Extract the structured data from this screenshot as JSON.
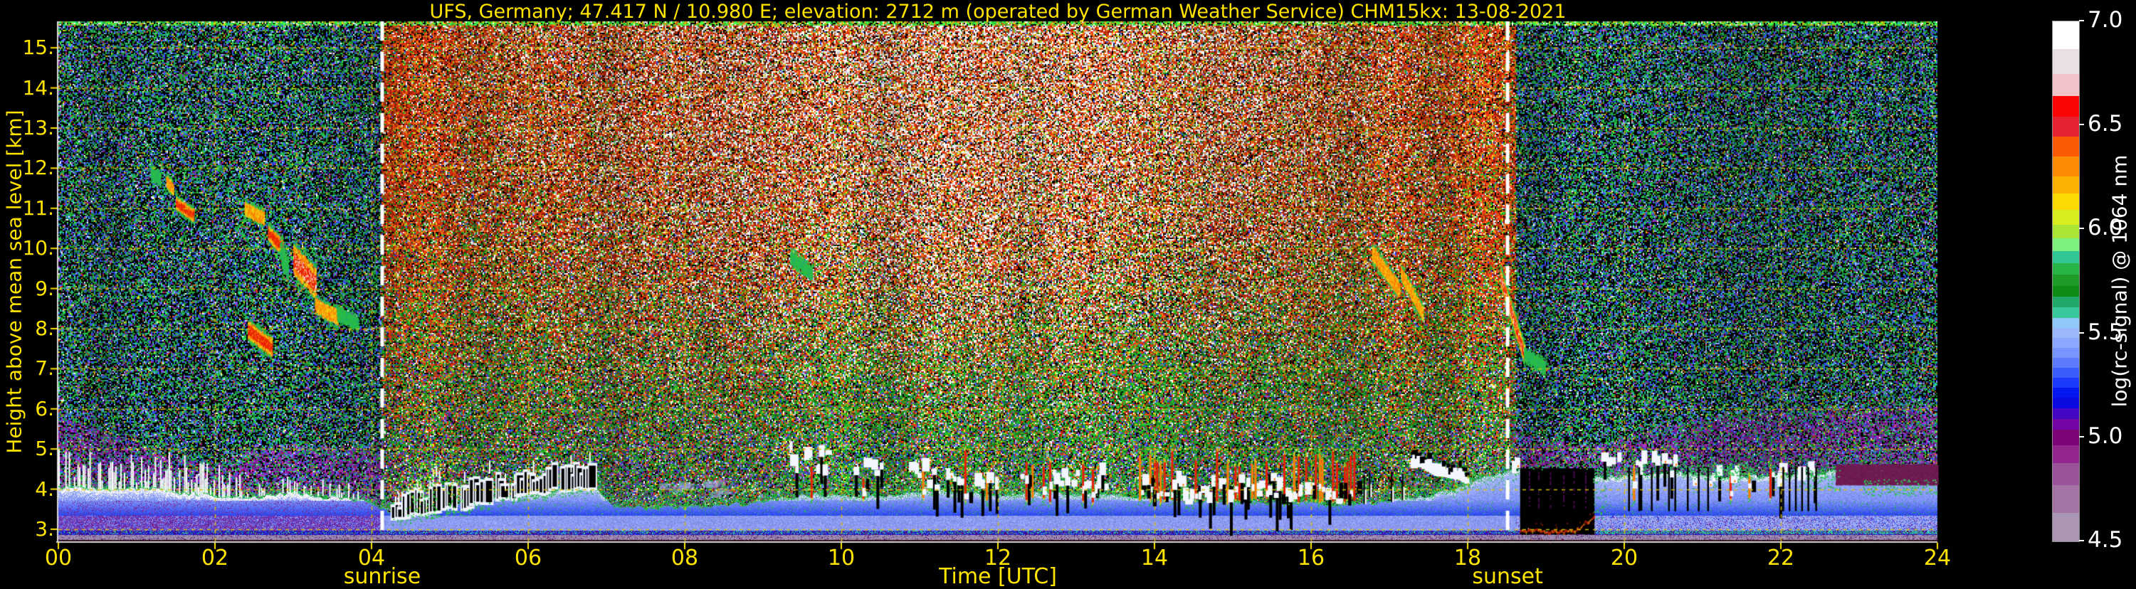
{
  "title": "UFS, Germany; 47.417 N / 10.980 E; elevation: 2712 m  (operated by German Weather Service)   CHM15kx: 13-08-2021",
  "text_color": "#ffe400",
  "grid": {
    "color": "#d9c400",
    "dash": [
      5,
      6
    ]
  },
  "sun_line": {
    "color": "#ffffff",
    "dash": [
      27,
      16
    ],
    "width": 5
  },
  "axes": {
    "x_label": "Time [UTC]",
    "y_label": "Height above mean sea level [km]",
    "x_ticks": [
      {
        "t": 0,
        "label": "00"
      },
      {
        "t": 2,
        "label": "02"
      },
      {
        "t": 4,
        "label": "04"
      },
      {
        "t": 6,
        "label": "06"
      },
      {
        "t": 8,
        "label": "08"
      },
      {
        "t": 10,
        "label": "10"
      },
      {
        "t": 12,
        "label": "12"
      },
      {
        "t": 14,
        "label": "14"
      },
      {
        "t": 16,
        "label": "16"
      },
      {
        "t": 18,
        "label": "18"
      },
      {
        "t": 20,
        "label": "20"
      },
      {
        "t": 22,
        "label": "22"
      },
      {
        "t": 24,
        "label": "24"
      }
    ],
    "y_ticks": [
      {
        "km": 15,
        "label": "15."
      },
      {
        "km": 14,
        "label": "14."
      },
      {
        "km": 13,
        "label": "13."
      },
      {
        "km": 12,
        "label": "12."
      },
      {
        "km": 11,
        "label": "11."
      },
      {
        "km": 10,
        "label": "10."
      },
      {
        "km": 9,
        "label": "9."
      },
      {
        "km": 8,
        "label": "8."
      },
      {
        "km": 7,
        "label": "7."
      },
      {
        "km": 6,
        "label": "6."
      },
      {
        "km": 5,
        "label": "5."
      },
      {
        "km": 4,
        "label": "4."
      },
      {
        "km": 3,
        "label": "3."
      }
    ],
    "sunrise_label": "sunrise",
    "sunset_label": "sunset"
  },
  "colorbar": {
    "label": "log(rc-signal) @ 1064 nm",
    "ticks": [
      {
        "value": 7.0,
        "label": "7.0"
      },
      {
        "value": 6.5,
        "label": "6.5"
      },
      {
        "value": 6.0,
        "label": "6.0"
      },
      {
        "value": 5.5,
        "label": "5.5"
      },
      {
        "value": 5.0,
        "label": "5.0"
      },
      {
        "value": 4.5,
        "label": "4.5"
      }
    ],
    "range": [
      4.5,
      7.0
    ],
    "bands": [
      {
        "color": "#ffffff",
        "h": 39
      },
      {
        "color": "#eadfe2",
        "h": 35
      },
      {
        "color": "#f2c4ca",
        "h": 31
      },
      {
        "color": "#fb0505",
        "h": 29
      },
      {
        "color": "#e62333",
        "h": 28
      },
      {
        "color": "#fb5a04",
        "h": 28
      },
      {
        "color": "#fb8c04",
        "h": 28
      },
      {
        "color": "#fcb004",
        "h": 24
      },
      {
        "color": "#fcd804",
        "h": 23
      },
      {
        "color": "#d8ec20",
        "h": 21
      },
      {
        "color": "#abe434",
        "h": 19
      },
      {
        "color": "#7df07d",
        "h": 18
      },
      {
        "color": "#30c795",
        "h": 17
      },
      {
        "color": "#28b446",
        "h": 16
      },
      {
        "color": "#1e9c28",
        "h": 16
      },
      {
        "color": "#0f8c14",
        "h": 15
      },
      {
        "color": "#22a868",
        "h": 15
      },
      {
        "color": "#38c89c",
        "h": 15
      },
      {
        "color": "#90c8fa",
        "h": 14
      },
      {
        "color": "#9cb8fc",
        "h": 14
      },
      {
        "color": "#8aa8fe",
        "h": 14
      },
      {
        "color": "#7894fe",
        "h": 14
      },
      {
        "color": "#5c7afe",
        "h": 14
      },
      {
        "color": "#3c5cfe",
        "h": 14
      },
      {
        "color": "#1c3afc",
        "h": 14
      },
      {
        "color": "#0517ee",
        "h": 14
      },
      {
        "color": "#0a0ae0",
        "h": 15
      },
      {
        "color": "#4408c4",
        "h": 15
      },
      {
        "color": "#7404a4",
        "h": 15
      },
      {
        "color": "#7c0478",
        "h": 22
      },
      {
        "color": "#92258e",
        "h": 25
      },
      {
        "color": "#9a529a",
        "h": 31
      },
      {
        "color": "#a273a4",
        "h": 39
      },
      {
        "color": "#aa96b2",
        "h": 40
      }
    ]
  },
  "palette": {
    "noise_night": {
      "green": "#1f9430",
      "bright_green": "#28c43c",
      "teal": "#1fa086",
      "blue": "#2e48e8",
      "light_blue": "#8098ff",
      "purple": "#7a1a92",
      "magenta": "#9632a8",
      "yellow": "#b0b014",
      "orange": "#c05a10",
      "red": "#c02818",
      "white": "#e8e8f8"
    },
    "noise_day": {
      "green": "#1e9e2a",
      "dark_green": "#117820",
      "yellow_green": "#8cc81e",
      "yellow": "#ccb414",
      "orange": "#e06414",
      "red": "#cc2a10",
      "dark_red": "#8c1a0a",
      "white": "#ffffff",
      "gray": "#b4b4bc",
      "blue": "#2e48e8",
      "periwinkle": "#8898f0",
      "purple": "#6a2090",
      "magenta": "#8c3ba0"
    },
    "layer": {
      "lavender": "#a494b4",
      "lavender2": "#8f7da6",
      "deep_blue": "#0f0fd8",
      "purple_low": "#5c0a6e",
      "blue": "#2946f2",
      "light_blue": "#7e92fe",
      "pale_blue": "#a4b4ff",
      "cap_white": "#ffffff",
      "cap_day": "#b4c2ff",
      "green_fringe": "#2cb44e",
      "teal_row": "#32c896",
      "maroon_bottom": "#38101e",
      "night_purple": "#7c2492",
      "periwinkle_day": "#8a98f4",
      "periwinkle_eve": "#9aa8f6",
      "mid_blue": "#5246d8"
    },
    "features": {
      "cloud_white": "#f4f6ff",
      "core_red": "#e81e08",
      "core_orange": "#fc7a04",
      "core_yellow": "#f2cf14",
      "cirrus_green": "#2cbe46",
      "cirrus_teal": "#20a878",
      "maroon_cap": "#6b1b4d",
      "maroon_cap2": "#7a2360",
      "purple_line": "#4a0d52",
      "blackout_red": "#e22808",
      "blackout_orange": "#f57b14",
      "spike_white": "#ffffff",
      "column_green": "#34d23c"
    }
  },
  "chart_data": {
    "type": "heatmap",
    "title": "UFS, Germany; 47.417 N / 10.980 E; elevation: 2712 m  (operated by German Weather Service)   CHM15kx: 13-08-2021",
    "xlabel": "Time [UTC]",
    "ylabel": "Height above mean sea level [km]",
    "zlabel": "log(rc-signal) @ 1064 nm",
    "x_range": [
      0,
      24
    ],
    "y_range_km": [
      2.69,
      15.66
    ],
    "z_range": [
      4.5,
      7.0
    ],
    "grid": "yellow dashed, 1 km horizontal, 2 h vertical",
    "sunrise_utc": 4.136,
    "sunset_utc": 18.51,
    "layer_top": [
      [
        0,
        4.05
      ],
      [
        0.6,
        4.02
      ],
      [
        1.2,
        4.0
      ],
      [
        1.8,
        3.88
      ],
      [
        2.4,
        3.78
      ],
      [
        2.9,
        3.9
      ],
      [
        3.4,
        3.82
      ],
      [
        3.9,
        3.72
      ],
      [
        4.25,
        3.42
      ],
      [
        4.8,
        3.55
      ],
      [
        5.4,
        3.72
      ],
      [
        6.0,
        3.88
      ],
      [
        6.6,
        4.0
      ],
      [
        6.85,
        4.05
      ],
      [
        7.1,
        3.6
      ],
      [
        7.6,
        3.5
      ],
      [
        8.5,
        3.58
      ],
      [
        9.1,
        3.72
      ],
      [
        9.6,
        3.85
      ],
      [
        10.2,
        3.8
      ],
      [
        10.8,
        3.88
      ],
      [
        11.3,
        3.98
      ],
      [
        11.9,
        3.85
      ],
      [
        12.5,
        3.9
      ],
      [
        13.1,
        3.88
      ],
      [
        13.7,
        3.8
      ],
      [
        14.3,
        3.72
      ],
      [
        15.0,
        3.68
      ],
      [
        15.7,
        3.65
      ],
      [
        16.3,
        3.6
      ],
      [
        16.8,
        3.66
      ],
      [
        17.3,
        3.76
      ],
      [
        17.8,
        3.95
      ],
      [
        18.2,
        4.3
      ],
      [
        18.55,
        4.42
      ],
      [
        18.67,
        4.45
      ],
      [
        19.62,
        4.28
      ],
      [
        20.1,
        4.35
      ],
      [
        20.7,
        4.42
      ],
      [
        21.3,
        4.32
      ],
      [
        21.9,
        4.3
      ],
      [
        22.5,
        4.36
      ],
      [
        22.9,
        4.52
      ],
      [
        23.4,
        4.45
      ],
      [
        24,
        4.38
      ]
    ],
    "haze_top": [
      [
        0,
        5.95
      ],
      [
        0.7,
        5.5
      ],
      [
        1.4,
        4.95
      ],
      [
        2.0,
        4.7
      ],
      [
        2.5,
        5.1
      ],
      [
        3.0,
        5.25
      ],
      [
        3.5,
        5.1
      ],
      [
        4.13,
        5.15
      ],
      [
        18.62,
        5.5
      ],
      [
        19.0,
        5.3
      ],
      [
        19.6,
        5.15
      ],
      [
        20.2,
        5.5
      ],
      [
        21.0,
        5.85
      ],
      [
        22.0,
        6.05
      ],
      [
        23.0,
        6.15
      ],
      [
        24,
        6.2
      ]
    ],
    "purple_day": [
      [
        4.14,
        0.75
      ],
      [
        5.2,
        0.6
      ],
      [
        6.0,
        0.4
      ],
      [
        6.9,
        0.55
      ],
      [
        7.9,
        0.6
      ],
      [
        8.7,
        0.45
      ],
      [
        9.6,
        0.28
      ],
      [
        11,
        0.22
      ],
      [
        13,
        0.22
      ],
      [
        15,
        0.26
      ],
      [
        16.5,
        0.3
      ],
      [
        17.6,
        0.4
      ],
      [
        18.2,
        0.52
      ],
      [
        18.6,
        0.6
      ]
    ],
    "red_bias": [
      [
        4.14,
        1.45
      ],
      [
        5.5,
        1.15
      ],
      [
        6.5,
        1.25
      ],
      [
        8,
        1.3
      ],
      [
        9.5,
        1.15
      ],
      [
        11,
        0.95
      ],
      [
        12.5,
        0.95
      ],
      [
        14,
        1.05
      ],
      [
        15.5,
        1.1
      ],
      [
        17,
        1.2
      ],
      [
        18.6,
        1.3
      ]
    ],
    "bright_columns": [
      [
        4.18,
        5.15,
        0.55
      ],
      [
        5.35,
        5.6,
        0.25
      ],
      [
        5.75,
        6.1,
        0.3
      ],
      [
        6.3,
        6.6,
        0.22
      ],
      [
        8.0,
        8.45,
        0.22
      ],
      [
        9.3,
        9.75,
        0.28
      ],
      [
        10.6,
        12.15,
        0.45
      ],
      [
        12.85,
        13.25,
        0.28
      ],
      [
        14.65,
        15.1,
        0.28
      ],
      [
        15.9,
        16.2,
        0.22
      ],
      [
        16.8,
        17.35,
        0.3
      ],
      [
        17.6,
        18.55,
        0.42
      ]
    ],
    "clusters": [
      {
        "t0": 4.3,
        "t1": 6.85,
        "style": "dark-train",
        "base0": 3.3,
        "base1": 4.15
      },
      {
        "t0": 4.5,
        "t1": 5.12,
        "style": "green-columns",
        "base0": 3.3,
        "base1": 5.1
      },
      {
        "t0": 7.7,
        "t1": 8.6,
        "style": "smear",
        "base0": 3.85,
        "base1": 4.2,
        "blobP": 0.5
      },
      {
        "t0": 9.25,
        "t1": 9.95,
        "style": "blobs",
        "base0": 4.3,
        "base1": 4.9,
        "blobP": 0.6,
        "shadowP": 0.45,
        "coreP": 0.12,
        "coreTop": 4.9
      },
      {
        "t0": 10.05,
        "t1": 10.55,
        "style": "blobs",
        "base0": 4.15,
        "base1": 4.55,
        "blobP": 0.5,
        "shadowP": 0.4,
        "coreP": 0.08,
        "coreTop": 4.7
      },
      {
        "t0": 10.9,
        "t1": 11.6,
        "style": "train",
        "base0": 3.9,
        "base1": 4.5,
        "blobP": 0.45,
        "coreP": 0.38,
        "coreTop": 5.0,
        "shadowP": 0.5
      },
      {
        "t0": 11.75,
        "t1": 12.0,
        "style": "train",
        "base0": 3.9,
        "base1": 4.4,
        "blobP": 0.4,
        "coreP": 0.3,
        "coreTop": 4.7,
        "shadowP": 0.4
      },
      {
        "t0": 12.3,
        "t1": 13.45,
        "style": "train",
        "base0": 3.8,
        "base1": 4.4,
        "blobP": 0.5,
        "coreP": 0.35,
        "coreTop": 4.9,
        "shadowP": 0.5
      },
      {
        "t0": 13.8,
        "t1": 16.55,
        "style": "train",
        "base0": 3.6,
        "base1": 4.2,
        "blobP": 0.6,
        "coreP": 0.5,
        "coreTop": 5.0,
        "shadowP": 0.55
      },
      {
        "t0": 16.6,
        "t1": 17.25,
        "style": "spikes",
        "base0": 3.8,
        "base1": 4.35,
        "blobP": 0.5
      },
      {
        "t0": 17.3,
        "t1": 18.02,
        "style": "bank",
        "base0": 4.55,
        "base1": 4.1
      },
      {
        "t0": 18.5,
        "t1": 18.68,
        "style": "blobs",
        "base0": 4.35,
        "base1": 4.6,
        "blobP": 0.5,
        "shadowP": 0.1,
        "coreP": 0,
        "coreTop": 4.6
      },
      {
        "t0": 19.7,
        "t1": 20.7,
        "style": "blobs",
        "base0": 4.25,
        "base1": 4.8,
        "blobP": 0.55,
        "shadowP": 0.3,
        "coreP": 0.05,
        "coreTop": 4.9
      },
      {
        "t0": 20.9,
        "t1": 22.5,
        "style": "blobs",
        "base0": 4.05,
        "base1": 4.5,
        "blobP": 0.45,
        "shadowP": 0.25,
        "coreP": 0.04,
        "coreTop": 4.6
      }
    ],
    "cirrus": [
      {
        "t0": 1.18,
        "t1": 1.3,
        "h0": 11.95,
        "h1": 11.75,
        "thick": 0.5,
        "intensity": 0.35
      },
      {
        "t0": 1.38,
        "t1": 1.46,
        "h0": 11.7,
        "h1": 11.5,
        "thick": 0.55,
        "intensity": 0.5
      },
      {
        "t0": 1.5,
        "t1": 1.72,
        "h0": 11.15,
        "h1": 10.85,
        "thick": 0.55,
        "intensity": 0.7
      },
      {
        "t0": 2.38,
        "t1": 2.62,
        "h0": 11.0,
        "h1": 10.78,
        "thick": 0.6,
        "intensity": 0.65
      },
      {
        "t0": 2.42,
        "t1": 2.72,
        "h0": 8.0,
        "h1": 7.55,
        "thick": 0.8,
        "intensity": 0.7
      },
      {
        "t0": 2.68,
        "t1": 2.86,
        "h0": 10.4,
        "h1": 10.05,
        "thick": 0.7,
        "intensity": 0.75
      },
      {
        "t0": 2.83,
        "t1": 2.93,
        "h0": 9.9,
        "h1": 9.55,
        "thick": 0.9,
        "intensity": 0.4
      },
      {
        "t0": 3.0,
        "t1": 3.28,
        "h0": 9.75,
        "h1": 9.15,
        "thick": 1.35,
        "intensity": 1.0
      },
      {
        "t0": 3.28,
        "t1": 3.56,
        "h0": 8.6,
        "h1": 8.3,
        "thick": 0.7,
        "intensity": 0.5
      },
      {
        "t0": 3.56,
        "t1": 3.82,
        "h0": 8.4,
        "h1": 8.15,
        "thick": 0.5,
        "intensity": 0.3
      },
      {
        "t0": 9.35,
        "t1": 9.62,
        "h0": 9.8,
        "h1": 9.4,
        "thick": 0.6,
        "intensity": 0.25
      },
      {
        "t0": 16.78,
        "t1": 17.12,
        "h0": 9.9,
        "h1": 9.0,
        "thick": 0.7,
        "intensity": 0.55
      },
      {
        "t0": 17.15,
        "t1": 17.42,
        "h0": 9.4,
        "h1": 8.4,
        "thick": 0.6,
        "intensity": 0.65
      },
      {
        "t0": 18.42,
        "t1": 18.72,
        "h0": 9.3,
        "h1": 7.4,
        "thick": 0.8,
        "intensity": 0.92
      },
      {
        "t0": 18.72,
        "t1": 18.98,
        "h0": 7.4,
        "h1": 7.05,
        "thick": 0.5,
        "intensity": 0.4
      }
    ],
    "blackout": {
      "t0": 18.67,
      "t1": 19.62,
      "h_top": 4.52,
      "h_bottom": 2.87,
      "red_line_h": 2.97,
      "purple_lines": [
        18.78,
        18.9,
        19.05,
        19.22,
        19.35,
        19.5
      ]
    },
    "dark_gaps": [
      20.05,
      20.18,
      20.34,
      20.56,
      20.64,
      20.8,
      20.94,
      21.06,
      22.02,
      22.1,
      22.18,
      22.26,
      22.34,
      22.44
    ],
    "green_patches": [
      {
        "t0": 19.6,
        "t1": 19.78,
        "h0": 3.25,
        "h1": 4.55,
        "d": 0.75
      },
      {
        "t0": 20.75,
        "t1": 21.65,
        "h0": 4.25,
        "h1": 4.65,
        "d": 0.45
      },
      {
        "t0": 22.3,
        "t1": 22.75,
        "h0": 3.95,
        "h1": 4.5,
        "d": 0.5
      },
      {
        "t0": 23.05,
        "t1": 24,
        "h0": 3.85,
        "h1": 4.25,
        "d": 0.4
      }
    ],
    "maroon_cap": {
      "t0": 22.7,
      "t1": 24,
      "h0": 4.12,
      "h1": 4.62
    },
    "night_spikes": {
      "t0": 0,
      "t1": 2.35,
      "density": 0.5
    },
    "teal_row": {
      "h0": 2.88,
      "h1": 2.97
    }
  }
}
